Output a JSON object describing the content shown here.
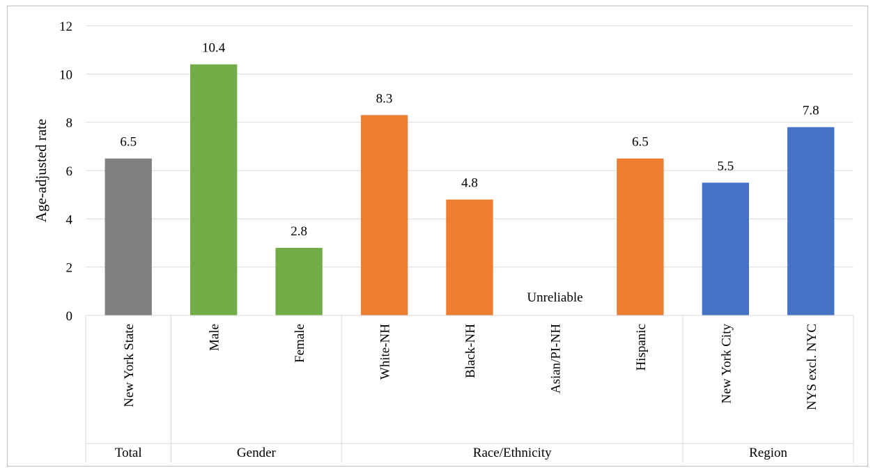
{
  "chart_data": {
    "type": "bar",
    "title": "",
    "xlabel": "",
    "ylabel": "Age-adjusted rate",
    "ylim": [
      0,
      12
    ],
    "yticks": [
      0,
      2,
      4,
      6,
      8,
      10,
      12
    ],
    "grid": true,
    "legend": "none",
    "groups": [
      {
        "name": "Total",
        "color": "#808080",
        "bars": [
          {
            "label": "New York State",
            "value": 6.5,
            "display": "6.5"
          }
        ]
      },
      {
        "name": "Gender",
        "color": "#70ad47",
        "bars": [
          {
            "label": "Male",
            "value": 10.4,
            "display": "10.4"
          },
          {
            "label": "Female",
            "value": 2.8,
            "display": "2.8"
          }
        ]
      },
      {
        "name": "Race/Ethnicity",
        "color": "#ed7d31",
        "bars": [
          {
            "label": "White-NH",
            "value": 8.3,
            "display": "8.3"
          },
          {
            "label": "Black-NH",
            "value": 4.8,
            "display": "4.8"
          },
          {
            "label": "Asian/PI-NH",
            "value": null,
            "display": "Unreliable"
          },
          {
            "label": "Hispanic",
            "value": 6.5,
            "display": "6.5"
          }
        ]
      },
      {
        "name": "Region",
        "color": "#4472c4",
        "bars": [
          {
            "label": "New York City",
            "value": 5.5,
            "display": "5.5"
          },
          {
            "label": "NYS excl. NYC",
            "value": 7.8,
            "display": "7.8"
          }
        ]
      }
    ]
  }
}
